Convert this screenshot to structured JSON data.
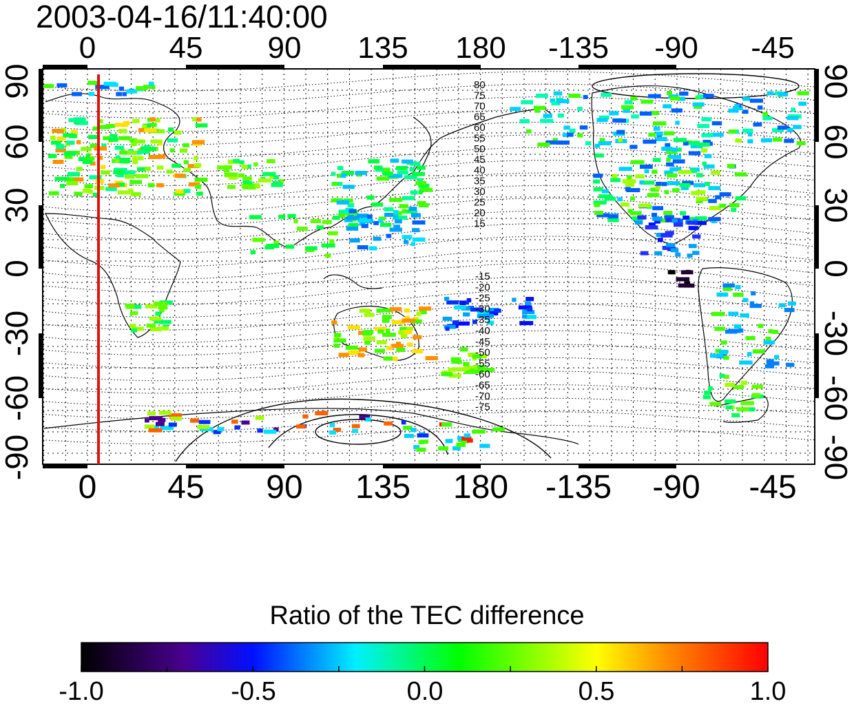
{
  "timestamp": "2003-04-16/11:40:00",
  "map": {
    "lon_ticks_top": [
      "0",
      "45",
      "90",
      "135",
      "180",
      "-135",
      "-90",
      "-45"
    ],
    "lon_ticks_bottom": [
      "0",
      "45",
      "90",
      "135",
      "180",
      "-135",
      "-90",
      "-45"
    ],
    "lat_ticks_left": [
      "90",
      "60",
      "30",
      "0",
      "-30",
      "-60",
      "-90"
    ],
    "lat_ticks_right": [
      "90",
      "60",
      "30",
      "0",
      "-30",
      "-60",
      "-90"
    ],
    "meridian_line_color": "#e01010",
    "contour_labels_north": [
      "80",
      "75",
      "70",
      "65",
      "60",
      "55",
      "50",
      "45",
      "40",
      "35",
      "30",
      "25",
      "20",
      "15"
    ],
    "contour_labels_south": [
      "-15",
      "-20",
      "-25",
      "-30",
      "-35",
      "-40",
      "-45",
      "-50",
      "-55",
      "-60",
      "-65",
      "-70",
      "-75"
    ]
  },
  "colorbar": {
    "title": "Ratio of the TEC difference",
    "ticks": [
      "-1.0",
      "-0.5",
      "0.0",
      "0.5",
      "1.0"
    ],
    "colors": [
      "#000000",
      "#4a0090",
      "#0010ff",
      "#00f0ff",
      "#00ff00",
      "#ffff00",
      "#ff9000",
      "#ff0000"
    ]
  }
}
